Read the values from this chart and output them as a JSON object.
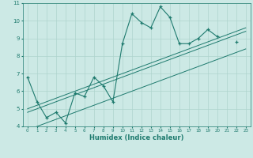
{
  "xlabel": "Humidex (Indice chaleur)",
  "bg_color": "#cce9e5",
  "line_color": "#1e7a6e",
  "grid_color": "#aed4ce",
  "x_data": [
    0,
    1,
    2,
    3,
    4,
    5,
    6,
    7,
    8,
    9,
    10,
    11,
    12,
    13,
    14,
    15,
    16,
    17,
    18,
    19,
    20,
    21,
    22,
    23
  ],
  "y_main": [
    6.8,
    5.4,
    4.5,
    4.8,
    4.2,
    5.9,
    5.7,
    6.8,
    6.3,
    5.4,
    8.7,
    10.4,
    9.9,
    9.6,
    10.8,
    10.2,
    8.7,
    8.7,
    9.0,
    9.5,
    9.1,
    null,
    8.8,
    null
  ],
  "y_reg1": [
    5.0,
    5.2,
    5.4,
    5.6,
    5.8,
    6.0,
    6.2,
    6.4,
    6.6,
    6.8,
    7.0,
    7.2,
    7.4,
    7.6,
    7.8,
    8.0,
    8.2,
    8.4,
    8.6,
    8.8,
    9.0,
    9.2,
    9.4,
    9.6
  ],
  "y_reg2": [
    4.8,
    5.0,
    5.2,
    5.4,
    5.6,
    5.8,
    6.0,
    6.2,
    6.4,
    6.6,
    6.8,
    7.0,
    7.2,
    7.4,
    7.6,
    7.8,
    8.0,
    8.2,
    8.4,
    8.6,
    8.8,
    9.0,
    9.2,
    9.4
  ],
  "y_reg3": [
    3.8,
    4.0,
    4.2,
    4.4,
    4.6,
    4.8,
    5.0,
    5.2,
    5.4,
    5.6,
    5.8,
    6.0,
    6.2,
    6.4,
    6.6,
    6.8,
    7.0,
    7.2,
    7.4,
    7.6,
    7.8,
    8.0,
    8.2,
    8.4
  ],
  "xlim": [
    -0.5,
    23.5
  ],
  "ylim": [
    4,
    11
  ],
  "yticks": [
    4,
    5,
    6,
    7,
    8,
    9,
    10,
    11
  ],
  "xticks": [
    0,
    1,
    2,
    3,
    4,
    5,
    6,
    7,
    8,
    9,
    10,
    11,
    12,
    13,
    14,
    15,
    16,
    17,
    18,
    19,
    20,
    21,
    22,
    23
  ]
}
